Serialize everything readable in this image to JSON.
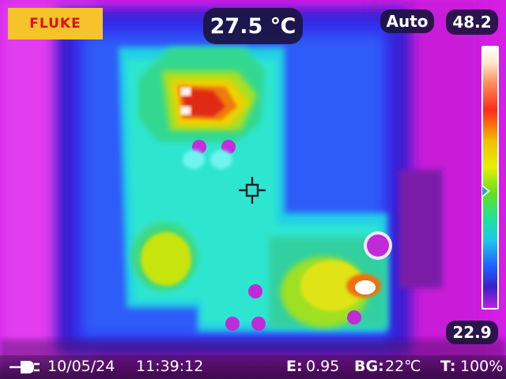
{
  "camera": {
    "brand": "FLUKE",
    "spot_temperature": "27.5 ℃",
    "range_mode": "Auto",
    "scale_max": "48.2",
    "scale_min": "22.9"
  },
  "status_bar": {
    "power_icon": "plug-icon",
    "date": "10/05/24",
    "time": "11:39:12",
    "emissivity_label": "E:",
    "emissivity_value": "0.95",
    "background_label": "BG:",
    "background_value": "22℃",
    "transmission_label": "T:",
    "transmission_value": "100%"
  },
  "palette": {
    "logo_bg": "#f6c32a",
    "logo_text": "#d8121c",
    "pill_bg": "#1a143c",
    "hot": "#ff2a1a",
    "warm": "#e6f000",
    "mid": "#20e0b0",
    "cool": "#2a40ff",
    "cold": "#c020e0"
  },
  "scale_level": 0.55
}
